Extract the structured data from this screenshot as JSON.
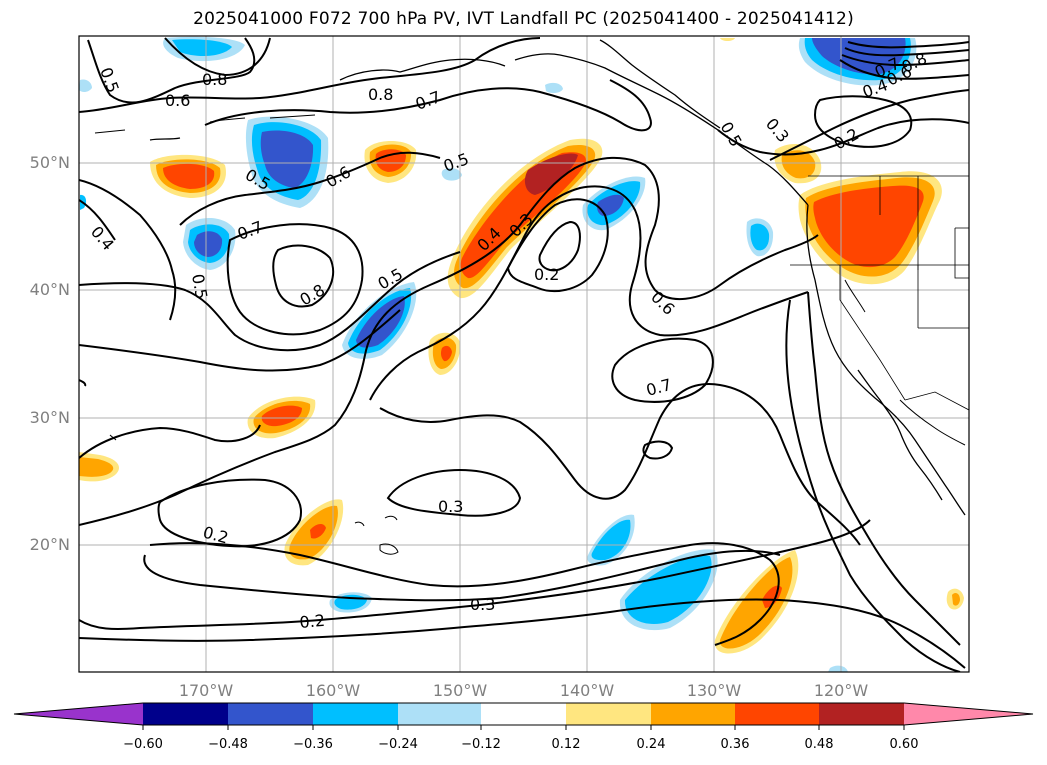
{
  "title": "2025041000 F072 700 hPa PV, IVT Landfall PC (2025041400 - 2025041412)",
  "lat_labels": [
    "50°N",
    "40°N",
    "30°N",
    "20°N"
  ],
  "lon_labels": [
    "170°W",
    "160°W",
    "150°W",
    "140°W",
    "130°W",
    "120°W"
  ],
  "colorbar": {
    "ticks": [
      "−0.60",
      "−0.48",
      "−0.36",
      "−0.24",
      "−0.12",
      "0.12",
      "0.24",
      "0.36",
      "0.48",
      "0.60"
    ],
    "colors": [
      "#9933cc",
      "#00008b",
      "#3355cc",
      "#00bfff",
      "#ade0f7",
      "#ffffff",
      "#ffe680",
      "#ffa500",
      "#ff4500",
      "#b22222",
      "#ff88aa"
    ]
  },
  "contour_labels": [
    "0.5",
    "0.8",
    "0.6",
    "0.8",
    "0.7",
    "0.5",
    "0.6",
    "0.5",
    "0.4",
    "0.7",
    "0.5",
    "0.8",
    "0.5",
    "0.4",
    "0.3",
    "0.2",
    "0.6",
    "0.7",
    "0.3",
    "0.3",
    "0.2",
    "0.2",
    "0.3",
    "0.2",
    "0.8",
    "0.6",
    "0.4",
    "0.5",
    "0.7"
  ],
  "map_extent": {
    "lon": [
      -180,
      -110
    ],
    "lat": [
      10,
      60
    ]
  }
}
